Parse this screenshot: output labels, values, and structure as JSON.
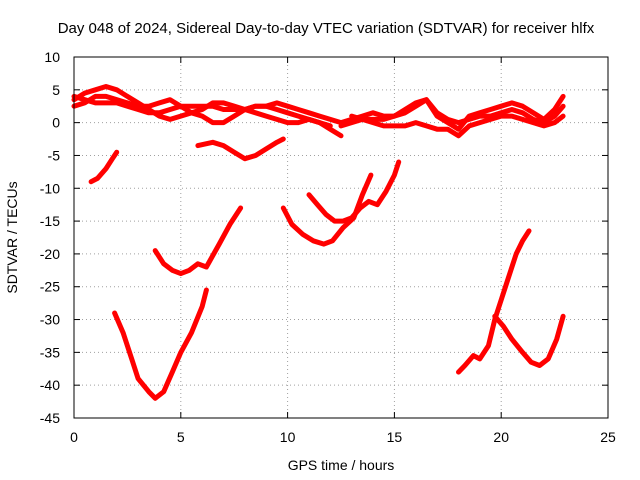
{
  "chart_data": {
    "type": "line",
    "title": "Day 048 of 2024, Sidereal Day-to-day VTEC variation (SDTVAR) for receiver hlfx",
    "xlabel": "GPS time / hours",
    "ylabel": "SDTVAR / TECUs",
    "xlim": [
      0,
      25
    ],
    "ylim": [
      -45,
      10
    ],
    "xticks": [
      0,
      5,
      10,
      15,
      20,
      25
    ],
    "yticks": [
      -45,
      -40,
      -35,
      -30,
      -25,
      -20,
      -15,
      -10,
      -5,
      0,
      5,
      10
    ],
    "grid": true,
    "color": "#ff0000",
    "series": [
      {
        "name": "s1",
        "x": [
          0.0,
          0.5,
          1.0,
          1.5,
          2.0,
          2.5,
          3.0,
          3.5,
          4.0,
          4.5,
          5.0,
          5.5,
          6.0,
          6.5,
          7.0,
          7.5,
          8.0,
          8.5,
          9.0,
          9.5,
          10.0,
          10.5,
          11.0,
          11.5,
          12.0,
          12.5
        ],
        "y": [
          3.5,
          4.5,
          5.0,
          5.5,
          5.0,
          4.0,
          3.0,
          2.0,
          1.0,
          0.5,
          1.0,
          1.5,
          2.0,
          3.0,
          3.0,
          2.5,
          2.0,
          1.5,
          1.0,
          0.5,
          0.0,
          0.0,
          0.5,
          0.0,
          -1.0,
          -2.0
        ]
      },
      {
        "name": "s2",
        "x": [
          0.0,
          0.5,
          1.0,
          1.5,
          2.0,
          2.5,
          3.0,
          3.5,
          4.0,
          4.5,
          5.0,
          5.5,
          6.0,
          6.5,
          7.0,
          7.5,
          8.0,
          8.5,
          9.0,
          9.5,
          10.0,
          10.5,
          11.0,
          11.5,
          12.0
        ],
        "y": [
          2.5,
          3.0,
          4.0,
          4.0,
          3.5,
          3.0,
          2.5,
          2.5,
          3.0,
          3.5,
          2.5,
          1.5,
          1.0,
          0.0,
          0.0,
          1.0,
          2.0,
          2.5,
          2.5,
          2.0,
          1.5,
          1.0,
          0.5,
          0.0,
          -0.5
        ]
      },
      {
        "name": "s3",
        "x": [
          0.0,
          0.5,
          1.0,
          1.5,
          2.0,
          2.5,
          3.0,
          3.5,
          4.0,
          4.5,
          5.0,
          5.5,
          6.0,
          6.5,
          7.0,
          7.5,
          8.0,
          8.5,
          9.0,
          9.5,
          10.0,
          10.5,
          11.0,
          11.5,
          12.0,
          12.5
        ],
        "y": [
          4.0,
          3.5,
          3.0,
          3.0,
          3.0,
          2.5,
          2.0,
          1.5,
          1.5,
          2.0,
          2.5,
          2.5,
          2.5,
          2.5,
          2.0,
          2.0,
          2.0,
          2.5,
          2.5,
          3.0,
          2.5,
          2.0,
          1.5,
          1.0,
          0.5,
          0.0
        ]
      },
      {
        "name": "s4",
        "x": [
          12.5,
          13.0,
          13.5,
          14.0,
          14.5,
          15.0,
          15.5,
          16.0,
          16.5,
          17.0,
          17.5,
          18.0,
          18.5,
          19.0,
          19.5,
          20.0,
          20.5,
          21.0,
          21.5,
          22.0,
          22.5,
          22.9
        ],
        "y": [
          0.0,
          0.5,
          1.0,
          1.5,
          1.0,
          1.0,
          1.5,
          2.5,
          3.5,
          1.5,
          0.5,
          0.0,
          0.5,
          1.0,
          1.0,
          1.5,
          2.0,
          1.5,
          0.5,
          0.0,
          1.0,
          2.5
        ]
      },
      {
        "name": "s5",
        "x": [
          12.5,
          13.0,
          13.5,
          14.0,
          14.5,
          15.0,
          15.5,
          16.0,
          16.5,
          17.0,
          17.5,
          18.0,
          18.5,
          19.0,
          19.5,
          20.0,
          20.5,
          21.0,
          21.5,
          22.0,
          22.5,
          22.9
        ],
        "y": [
          -0.5,
          0.0,
          0.5,
          0.5,
          0.5,
          1.0,
          2.0,
          3.0,
          3.5,
          1.0,
          0.0,
          -1.0,
          1.0,
          1.5,
          2.0,
          2.5,
          3.0,
          2.5,
          1.5,
          0.5,
          2.0,
          4.0
        ]
      },
      {
        "name": "s6",
        "x": [
          13.0,
          13.5,
          14.0,
          14.5,
          15.0,
          15.5,
          16.0,
          16.5,
          17.0,
          17.5,
          18.0,
          18.5,
          19.0,
          19.5,
          20.0,
          20.5,
          21.0,
          21.5,
          22.0,
          22.5,
          22.9
        ],
        "y": [
          1.0,
          0.5,
          0.0,
          -0.5,
          -0.5,
          -0.5,
          0.0,
          -0.5,
          -1.0,
          -1.0,
          -2.0,
          -0.5,
          0.0,
          0.5,
          1.0,
          1.0,
          0.5,
          0.0,
          -0.5,
          0.0,
          1.0
        ]
      },
      {
        "name": "s7",
        "x": [
          0.8,
          1.1,
          1.5,
          1.8,
          2.0
        ],
        "y": [
          -9.0,
          -8.5,
          -7.0,
          -5.5,
          -4.5
        ]
      },
      {
        "name": "s8",
        "x": [
          5.8,
          6.5,
          7.0,
          7.5,
          8.0,
          8.5,
          9.0,
          9.5,
          9.8
        ],
        "y": [
          -3.5,
          -3.0,
          -3.5,
          -4.5,
          -5.5,
          -5.0,
          -4.0,
          -3.0,
          -2.5
        ]
      },
      {
        "name": "s9",
        "x": [
          1.9,
          2.3,
          2.7,
          3.0,
          3.5,
          3.8,
          4.2,
          4.6,
          5.0,
          5.5,
          6.0,
          6.2
        ],
        "y": [
          -29.0,
          -32.0,
          -36.0,
          -39.0,
          -41.0,
          -42.0,
          -41.0,
          -38.0,
          -35.0,
          -32.0,
          -28.0,
          -25.5
        ]
      },
      {
        "name": "s10",
        "x": [
          3.8,
          4.2,
          4.6,
          5.0,
          5.4,
          5.8,
          6.2,
          6.8,
          7.3,
          7.8
        ],
        "y": [
          -19.5,
          -21.5,
          -22.5,
          -23.0,
          -22.5,
          -21.5,
          -22.0,
          -18.5,
          -15.5,
          -13.0
        ]
      },
      {
        "name": "s11",
        "x": [
          9.8,
          10.2,
          10.7,
          11.2,
          11.7,
          12.1,
          12.6,
          13.1,
          13.5,
          13.9
        ],
        "y": [
          -13.0,
          -15.5,
          -17.0,
          -18.0,
          -18.5,
          -18.0,
          -16.0,
          -14.5,
          -11.0,
          -8.0
        ]
      },
      {
        "name": "s12",
        "x": [
          11.0,
          11.4,
          11.8,
          12.2,
          12.6,
          13.0,
          13.4,
          13.8,
          14.2,
          14.6,
          15.0,
          15.2
        ],
        "y": [
          -11.0,
          -12.5,
          -14.0,
          -15.0,
          -15.0,
          -14.5,
          -13.0,
          -12.0,
          -12.5,
          -10.5,
          -8.0,
          -6.0
        ]
      },
      {
        "name": "s13",
        "x": [
          18.0,
          18.3,
          18.7,
          19.0,
          19.4,
          19.7,
          20.0,
          20.3,
          20.7,
          21.0,
          21.3
        ],
        "y": [
          -38.0,
          -37.0,
          -35.5,
          -36.0,
          -34.0,
          -30.0,
          -27.0,
          -24.0,
          -20.0,
          -18.0,
          -16.5
        ]
      },
      {
        "name": "s14",
        "x": [
          19.7,
          20.1,
          20.5,
          21.0,
          21.4,
          21.8,
          22.2,
          22.6,
          22.9
        ],
        "y": [
          -29.5,
          -31.0,
          -33.0,
          -35.0,
          -36.5,
          -37.0,
          -36.0,
          -33.0,
          -29.5
        ]
      }
    ]
  }
}
